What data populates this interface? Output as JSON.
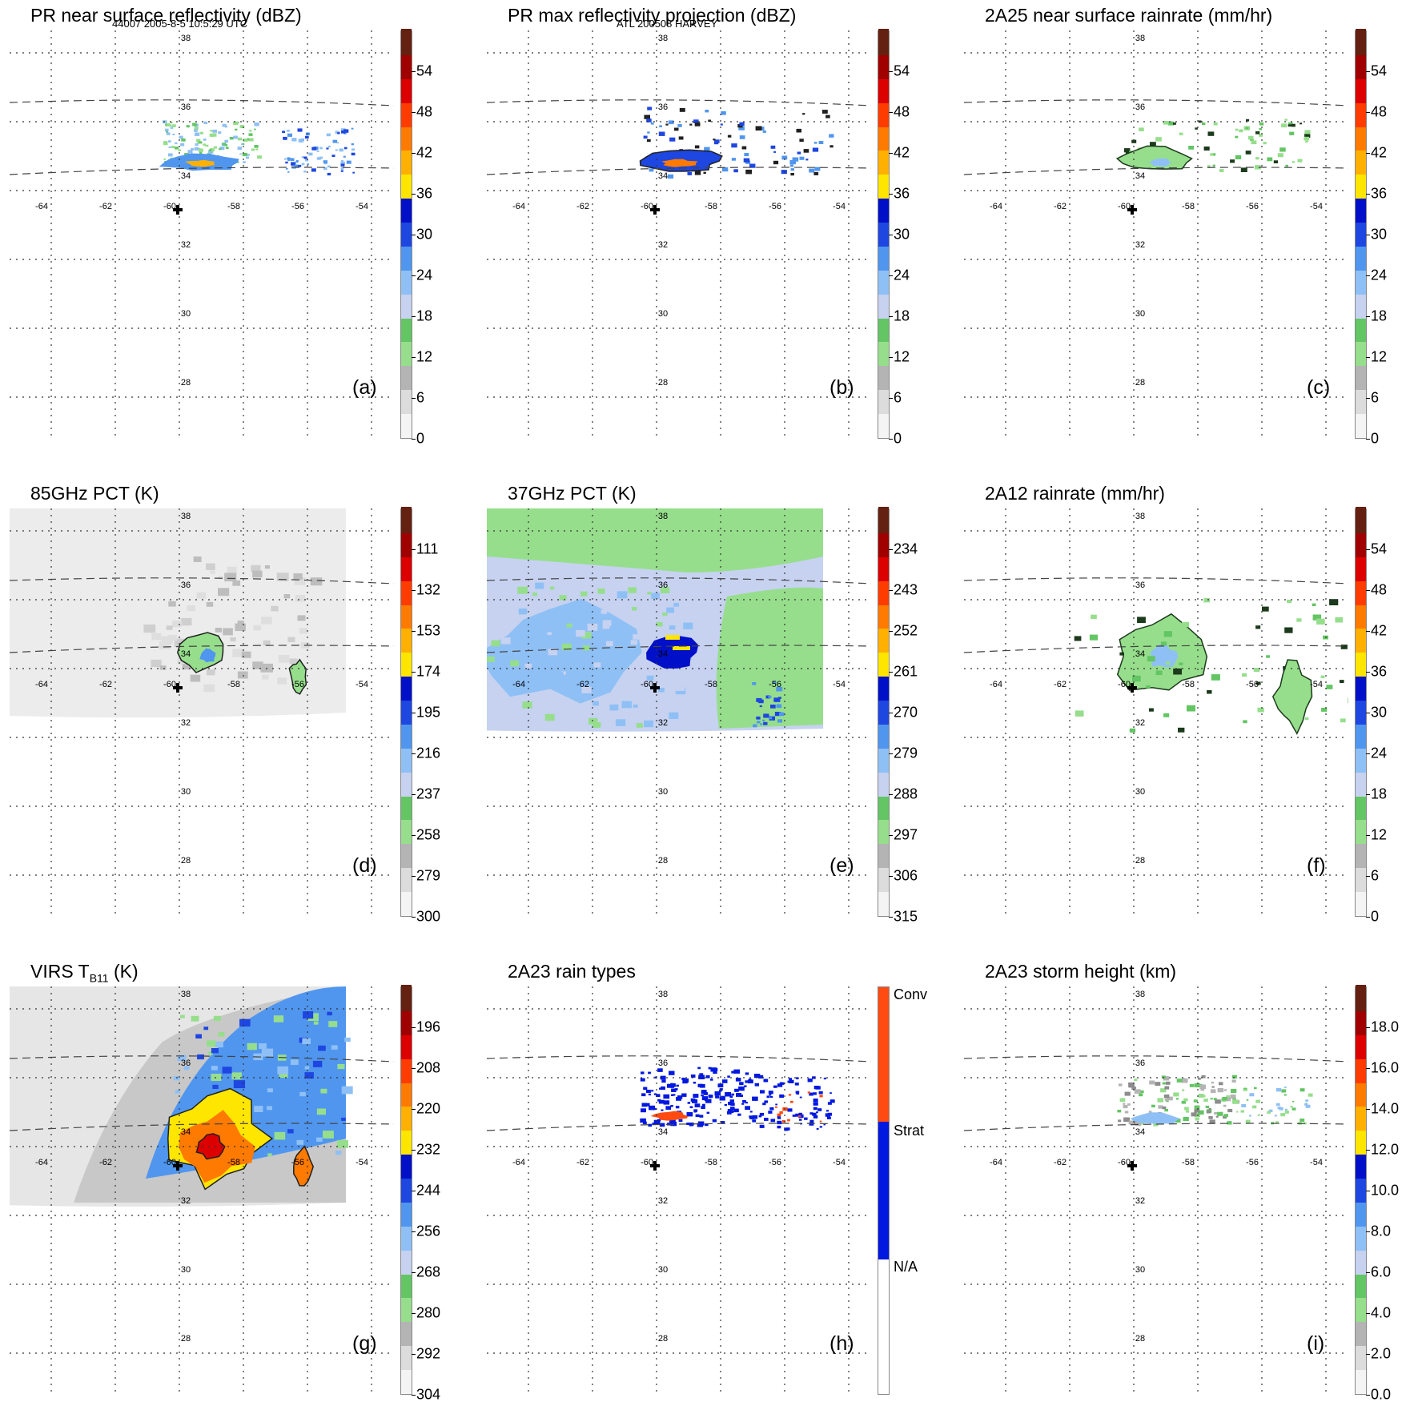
{
  "header": {
    "left": "44007 2005-8-5 10:5:29 UTC",
    "center": "ATL 200508 HARVEY"
  },
  "geo": {
    "lon_labels": [
      "-64",
      "-62",
      "-60",
      "-58",
      "-56",
      "-54"
    ],
    "lat_labels": [
      "38",
      "36",
      "34",
      "32",
      "30",
      "28"
    ]
  },
  "panels": [
    {
      "title": "PR near surface reflectivity (dBZ)",
      "label": "(a)",
      "colorbar": [
        "54",
        "48",
        "42",
        "36",
        "30",
        "24",
        "18",
        "12",
        "6",
        "0"
      ],
      "kind": "pr"
    },
    {
      "title": "PR max reflectivity projection (dBZ)",
      "label": "(b)",
      "colorbar": [
        "54",
        "48",
        "42",
        "36",
        "30",
        "24",
        "18",
        "12",
        "6",
        "0"
      ],
      "kind": "prmax"
    },
    {
      "title": "2A25 near surface rainrate (mm/hr)",
      "label": "(c)",
      "colorbar": [
        "54",
        "48",
        "42",
        "36",
        "30",
        "24",
        "18",
        "12",
        "6",
        "0"
      ],
      "kind": "rain25"
    },
    {
      "title": "85GHz PCT (K)",
      "label": "(d)",
      "colorbar": [
        "111",
        "132",
        "153",
        "174",
        "195",
        "216",
        "237",
        "258",
        "279",
        "300"
      ],
      "kind": "pct85"
    },
    {
      "title": "37GHz PCT (K)",
      "label": "(e)",
      "colorbar": [
        "234",
        "243",
        "252",
        "261",
        "270",
        "279",
        "288",
        "297",
        "306",
        "315"
      ],
      "kind": "pct37"
    },
    {
      "title": "2A12 rainrate (mm/hr)",
      "label": "(f)",
      "colorbar": [
        "54",
        "48",
        "42",
        "36",
        "30",
        "24",
        "18",
        "12",
        "6",
        "0"
      ],
      "kind": "rain12"
    },
    {
      "title": "VIRS T",
      "title_sub": "B11",
      "title_tail": " (K)",
      "label": "(g)",
      "colorbar": [
        "196",
        "208",
        "220",
        "232",
        "244",
        "256",
        "268",
        "280",
        "292",
        "304"
      ],
      "kind": "virs"
    },
    {
      "title": "2A23 rain types",
      "label": "(h)",
      "colorbar": [
        "Conv",
        "Strat",
        "N/A"
      ],
      "kind": "types"
    },
    {
      "title": "2A23 storm height (km)",
      "label": "(i)",
      "colorbar": [
        "18.0",
        "16.0",
        "14.0",
        "12.0",
        "10.0",
        "8.0",
        "6.0",
        "4.0",
        "2.0",
        "0.0"
      ],
      "kind": "height"
    }
  ],
  "colors": {
    "scale": [
      "#f4f4f4",
      "#dcdcdc",
      "#b4b4b4",
      "#96de8c",
      "#63c563",
      "#c6d2f0",
      "#8fc0f5",
      "#5096ef",
      "#1e46e0",
      "#0010c8",
      "#ffe600",
      "#ffb000",
      "#ff7a00",
      "#ff3c00",
      "#dc0000",
      "#a00000",
      "#642010"
    ],
    "conv": "#ff4a12",
    "strat": "#0018e0"
  }
}
